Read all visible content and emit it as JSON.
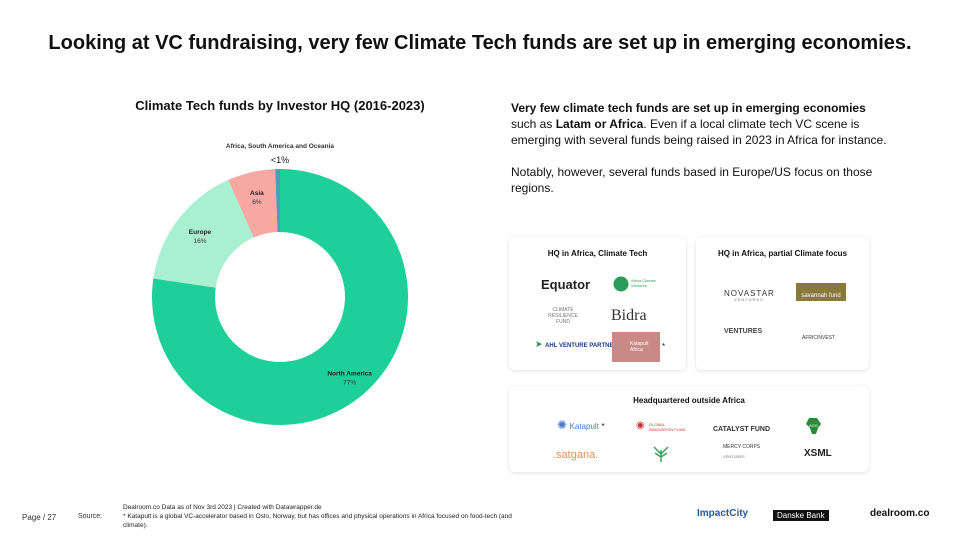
{
  "title": "Looking at VC fundraising, very few Climate Tech funds are set up in emerging economies.",
  "chart_data": {
    "type": "pie",
    "title": "Climate Tech funds by Investor HQ (2016-2023)",
    "slices": [
      {
        "label": "North America",
        "value": 77,
        "value_label": "77%",
        "color": "#1fcf9a"
      },
      {
        "label": "Europe",
        "value": 16,
        "value_label": "16%",
        "color": "#a8f0d0"
      },
      {
        "label": "Asia",
        "value": 6,
        "value_label": "6%",
        "color": "#f7a8a3"
      },
      {
        "label": "Africa, South America and Oceania",
        "value": 0.6,
        "value_label": "<1%",
        "color": "#4b9fb5"
      }
    ]
  },
  "description": {
    "p1_bold": "Very few climate tech funds are set up in emerging economies",
    "p1_pre": " such as ",
    "p1_bold2": "Latam or Africa",
    "p1_post": ". Even if a local climate tech VC scene is emerging with several funds being raised in 2023 in Africa for instance.",
    "p2": "Notably, however, several funds based in Europe/US focus on those regions."
  },
  "card_africa_climate": {
    "title": "HQ in Africa, Climate Tech",
    "logos": [
      "Equator",
      "Africa Climate Ventures",
      "CLIMATE RESILIENCE FUND",
      "Bidra",
      "AHL VENTURE PARTNERS",
      "Katapult Africa"
    ],
    "asterisk": "*"
  },
  "card_africa_partial": {
    "title": "HQ in Africa, partial Climate focus",
    "logos": [
      "NOVASTAR",
      "VENTURES",
      "savannah fund",
      "VENTURES",
      "AFRICINVEST"
    ]
  },
  "card_outside": {
    "title": "Headquartered outside Africa",
    "logos": [
      "Katapult",
      "*",
      "GLOBAL INNOVATION FUND",
      "CATALYST FUND",
      "AGG",
      ".satgana.",
      "MERCY CORPS",
      "VENTURES",
      "XSML"
    ]
  },
  "footer": {
    "page": "Page / 27",
    "source_label": "Source:",
    "line1": "Dealroom.co  Data as of Nov 3rd 2023  | Created with Datawrapper.de",
    "line2": "* Katapult is a global VC-accelerator based in Oslo, Norway, but has offices and physical operations in Africa focused on food-tech (and climate).",
    "partner1": "ImpactCity",
    "partner2": "Danske Bank",
    "partner3": "dealroom.co"
  }
}
